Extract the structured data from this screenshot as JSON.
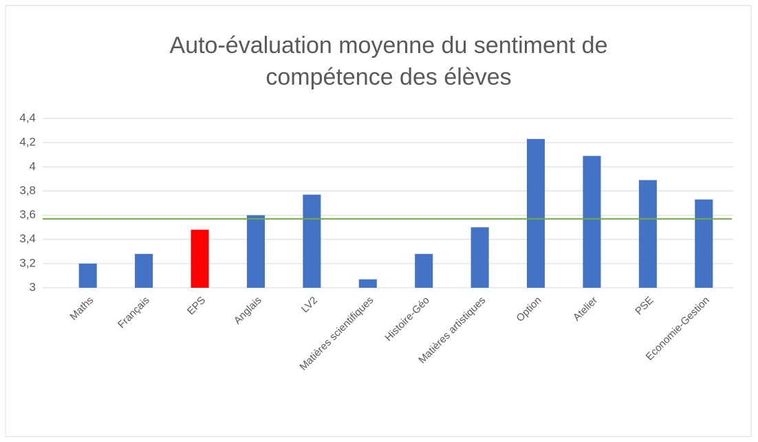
{
  "chart_data": {
    "type": "bar",
    "title": [
      "Auto-évaluation moyenne du sentiment de",
      "compétence des élèves"
    ],
    "categories": [
      "Maths",
      "Français",
      "EPS",
      "Anglais",
      "LV2",
      "Matières scientifiques",
      "Histoire-Géo",
      "Matières artistiques",
      "Option",
      "Atelier",
      "PSE",
      "Economie-Gestion"
    ],
    "values": [
      3.2,
      3.28,
      3.48,
      3.6,
      3.77,
      3.07,
      3.28,
      3.5,
      4.23,
      4.09,
      3.89,
      3.73
    ],
    "colors": [
      "#4472c4",
      "#4472c4",
      "#ff0000",
      "#4472c4",
      "#4472c4",
      "#4472c4",
      "#4472c4",
      "#4472c4",
      "#4472c4",
      "#4472c4",
      "#4472c4",
      "#4472c4"
    ],
    "ylim": [
      3,
      4.4
    ],
    "yticks": [
      {
        "value": 3,
        "label": "3"
      },
      {
        "value": 3.2,
        "label": "3,2"
      },
      {
        "value": 3.4,
        "label": "3,4"
      },
      {
        "value": 3.6,
        "label": "3,6"
      },
      {
        "value": 3.8,
        "label": "3,8"
      },
      {
        "value": 4,
        "label": "4"
      },
      {
        "value": 4.2,
        "label": "4,2"
      },
      {
        "value": 4.4,
        "label": "4,4"
      }
    ],
    "grid": true,
    "reference_line": {
      "value": 3.57,
      "color": "#70ad47"
    }
  }
}
